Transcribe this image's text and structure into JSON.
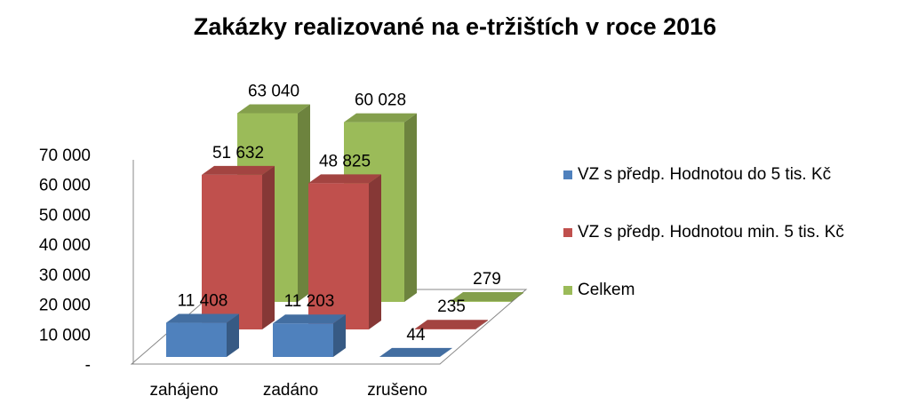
{
  "chart_data": {
    "type": "bar3d",
    "title": "Zakázky realizované na e-tržištích v roce 2016",
    "categories": [
      "zahájeno",
      "zadáno",
      "zrušeno"
    ],
    "series": [
      {
        "name": "VZ s předp. Hodnotou do 5 tis. Kč",
        "color": "#4f81bd",
        "values": [
          11408,
          11203,
          44
        ],
        "value_labels": [
          "11 408",
          "11 203",
          "44"
        ]
      },
      {
        "name": "VZ s předp. Hodnotou min. 5 tis. Kč",
        "color": "#c0504d",
        "values": [
          51632,
          48825,
          235
        ],
        "value_labels": [
          "51 632",
          "48 825",
          "235"
        ]
      },
      {
        "name": "Celkem",
        "color": "#9bbb59",
        "values": [
          63040,
          60028,
          279
        ],
        "value_labels": [
          "63 040",
          "60 028",
          "279"
        ]
      }
    ],
    "ylim": [
      0,
      70000
    ],
    "yticks": [
      {
        "value": 0,
        "label": "-"
      },
      {
        "value": 10000,
        "label": "10 000"
      },
      {
        "value": 20000,
        "label": "20 000"
      },
      {
        "value": 30000,
        "label": "30 000"
      },
      {
        "value": 40000,
        "label": "40 000"
      },
      {
        "value": 50000,
        "label": "50 000"
      },
      {
        "value": 60000,
        "label": "60 000"
      },
      {
        "value": 70000,
        "label": "70 000"
      }
    ],
    "legend": "right"
  }
}
